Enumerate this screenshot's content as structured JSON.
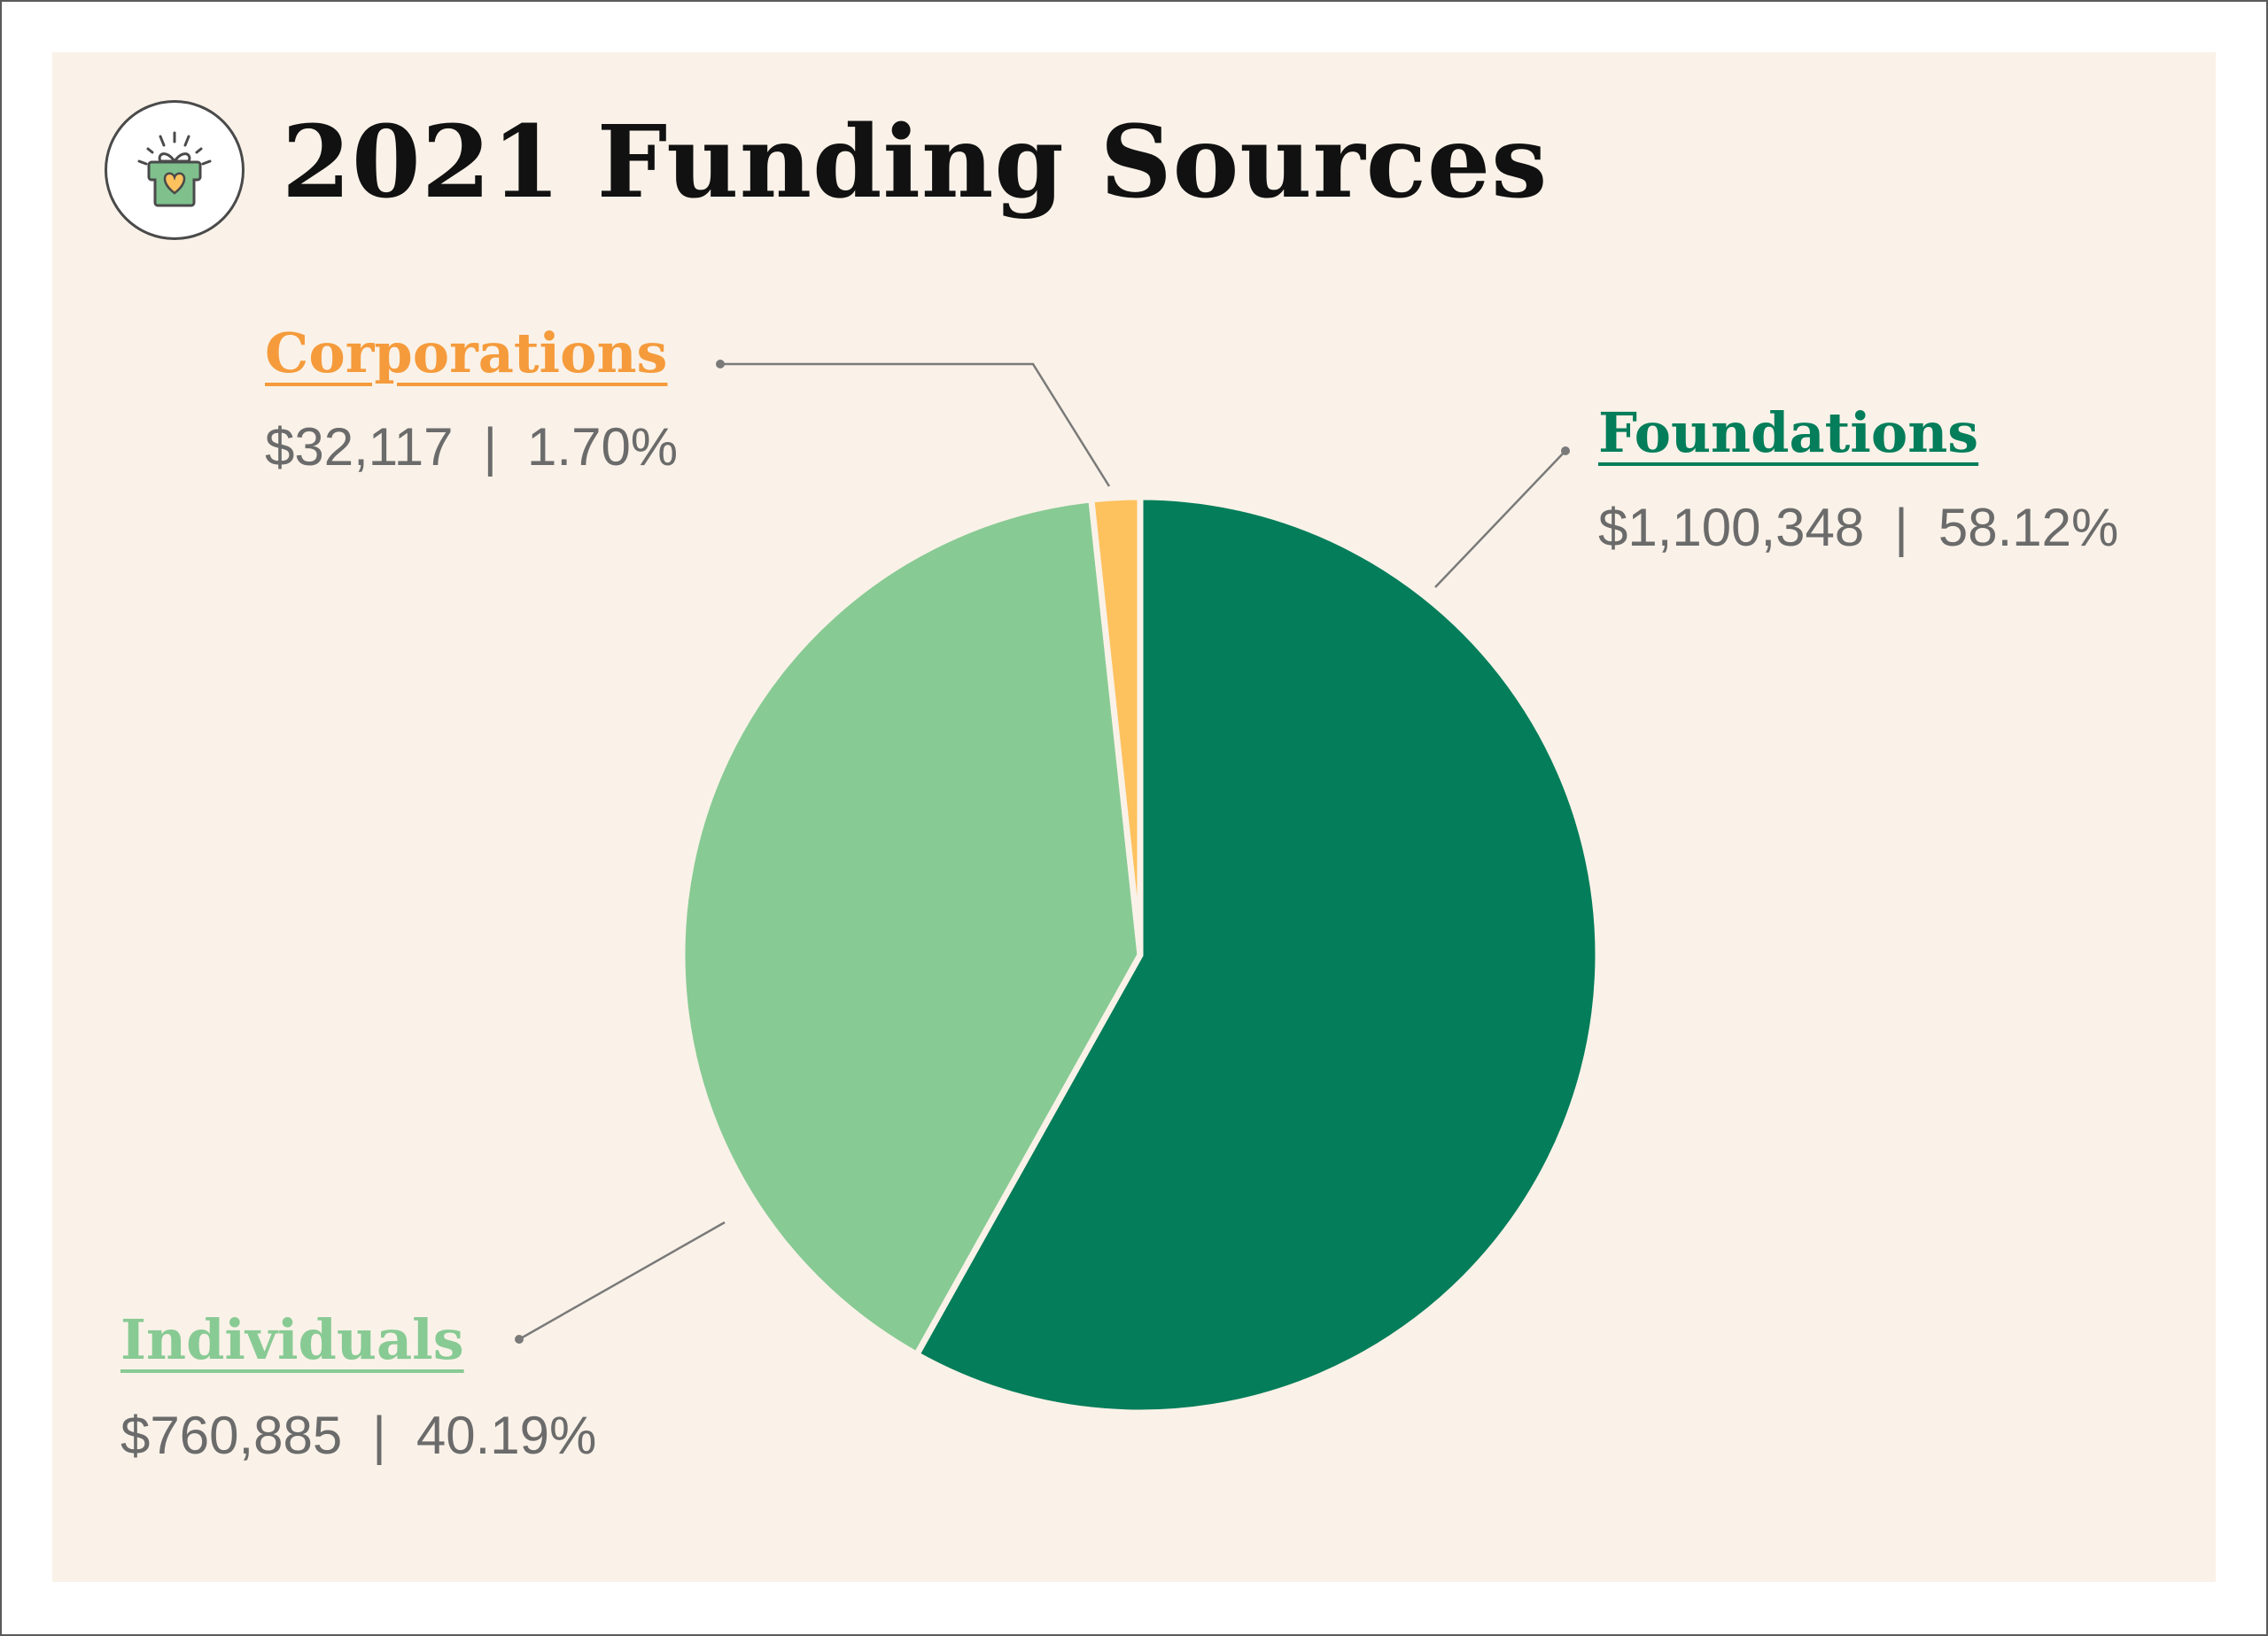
{
  "chart_data": {
    "type": "pie",
    "title": "2021 Funding Sources",
    "slices": [
      {
        "label": "Foundations",
        "amount": "$1,100,348",
        "percent_text": "58.12%",
        "value": 58.12,
        "color": "#047D5A",
        "label_color": "#047D5A"
      },
      {
        "label": "Individuals",
        "amount": "$760,885",
        "percent_text": "40.19%",
        "value": 40.19,
        "color": "#88CA94",
        "label_color": "#88CA94"
      },
      {
        "label": "Corporations",
        "amount": "$32,117",
        "percent_text": "1.70%",
        "value": 1.7,
        "color": "#FDC15E",
        "label_color": "#F59B3C"
      }
    ],
    "start_angle": "top, clockwise",
    "legend": "callout labels"
  },
  "separator": "|",
  "icon": "gift-heart-icon"
}
